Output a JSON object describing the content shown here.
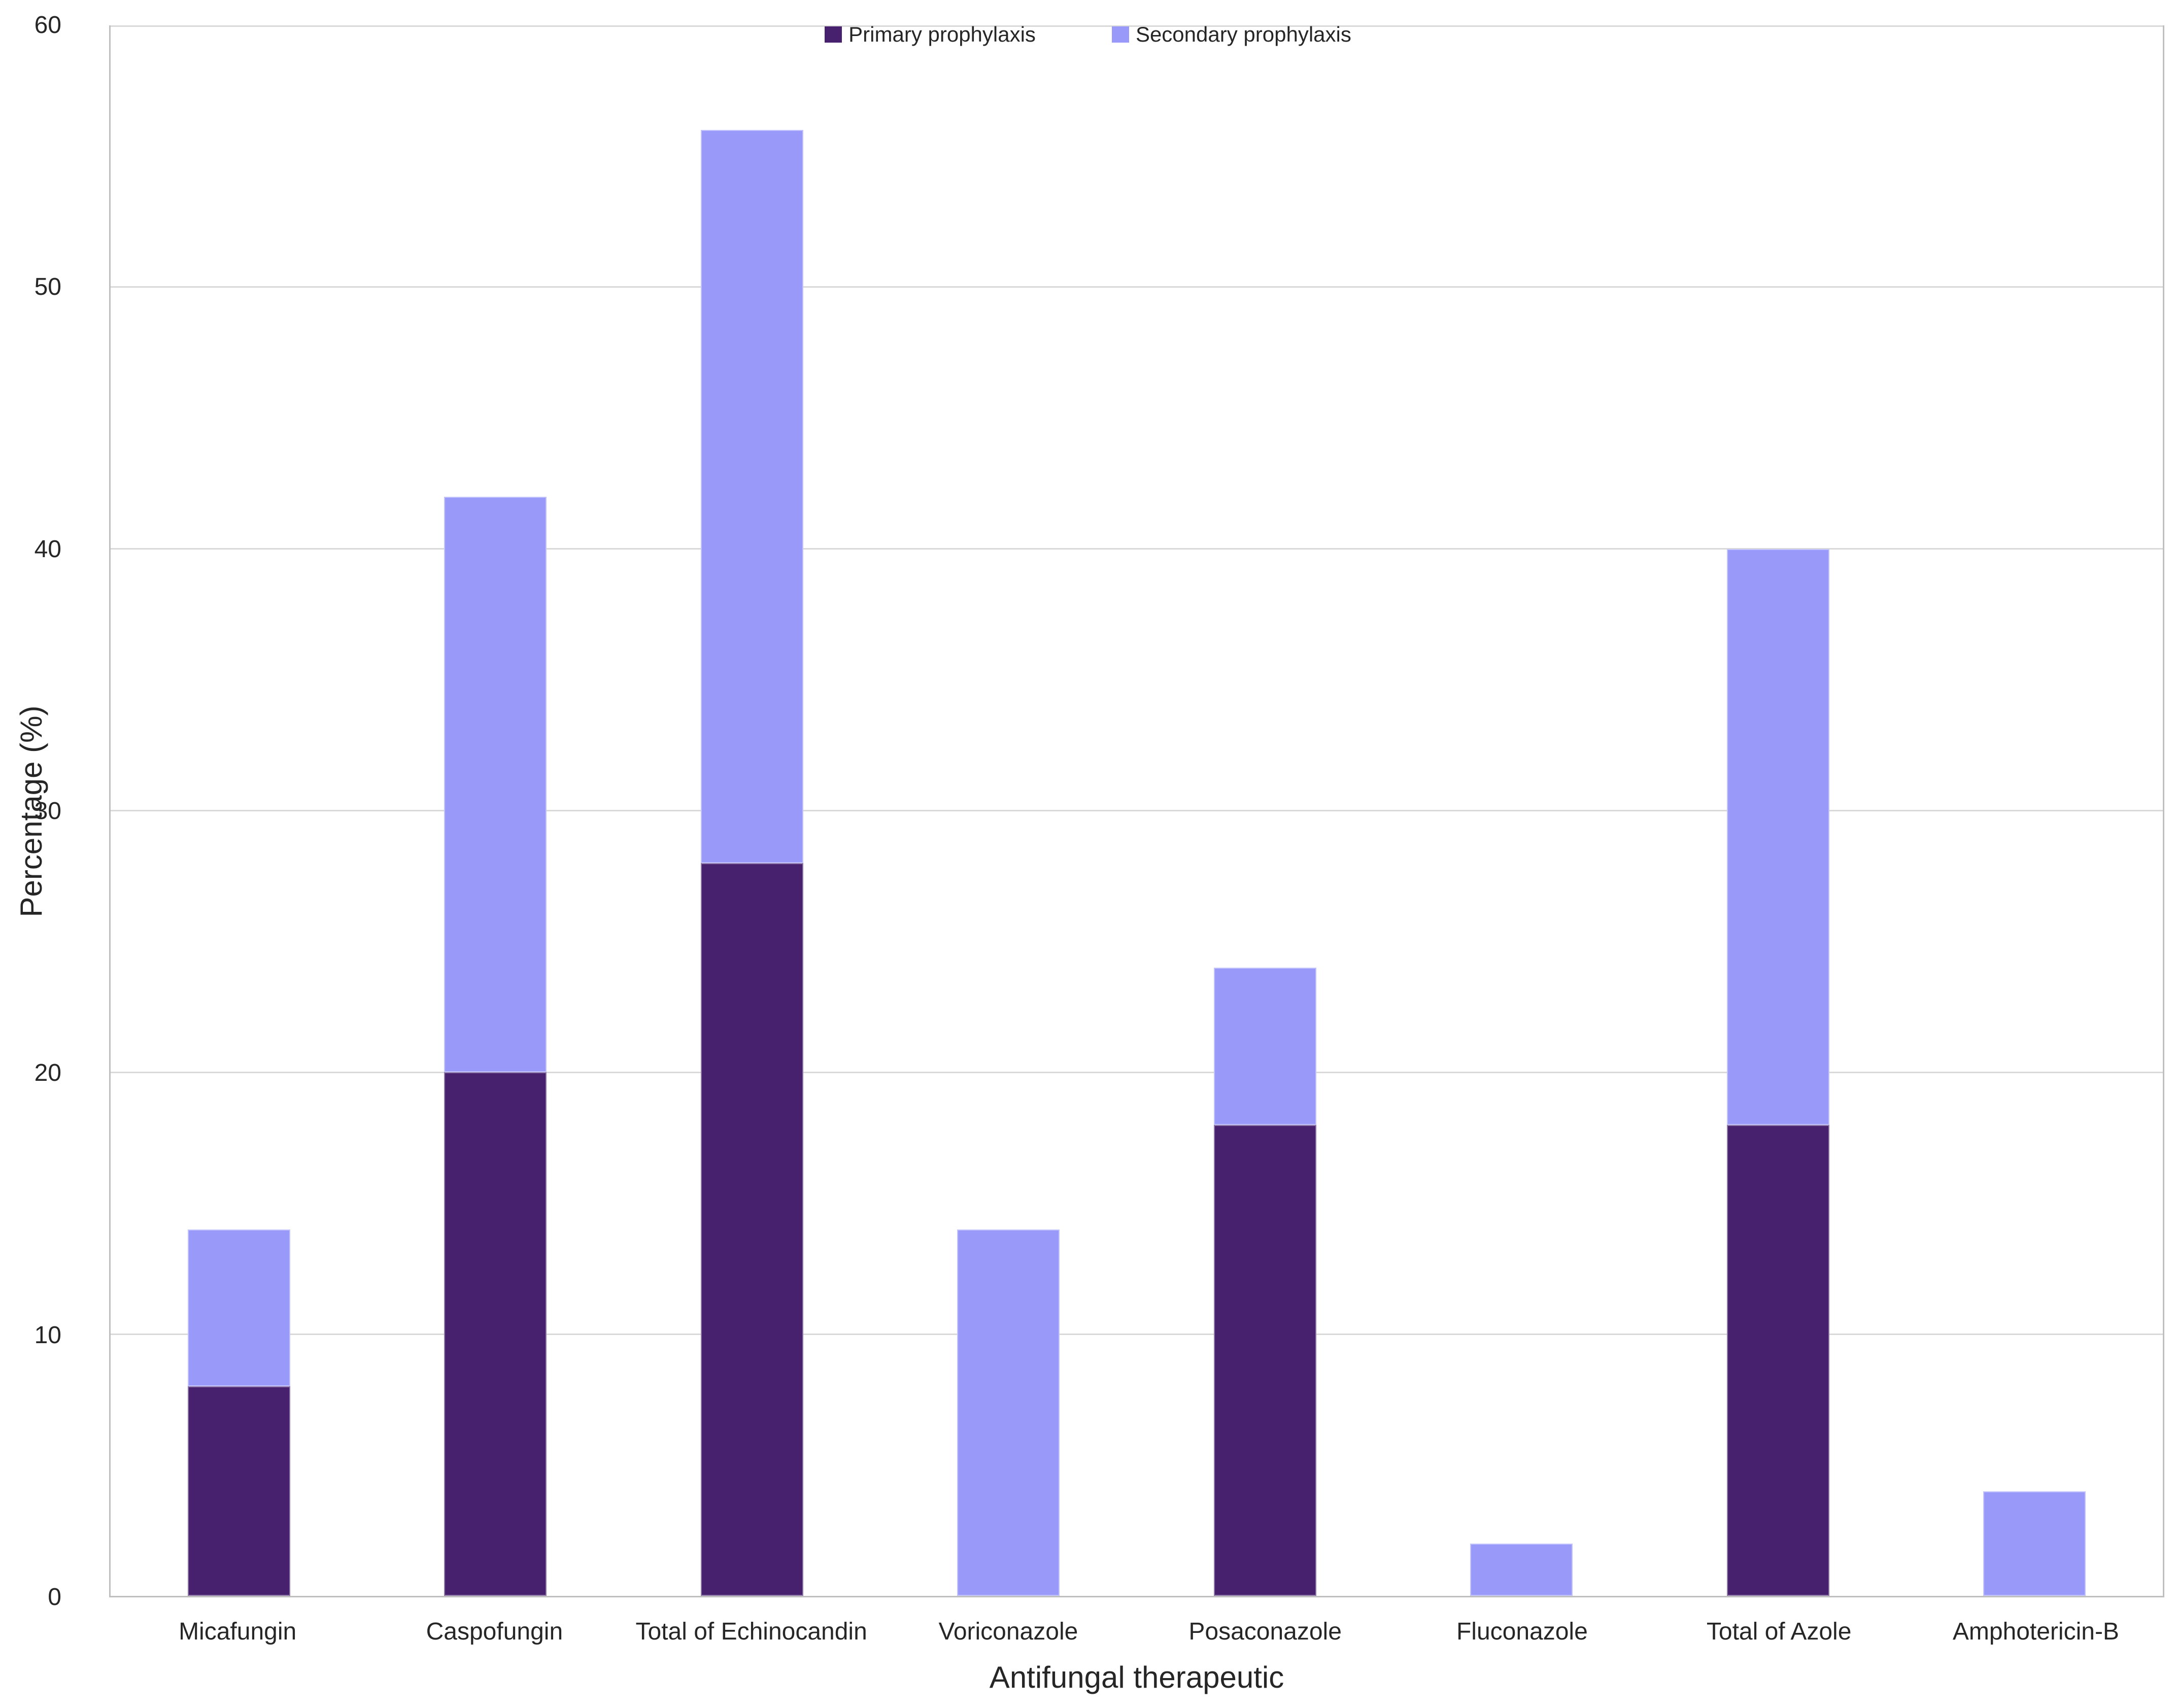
{
  "chart_data": {
    "type": "bar",
    "stacked": true,
    "title": "",
    "xlabel": "Antifungal therapeutic",
    "ylabel": "Percentage (%)",
    "ylim": [
      0,
      60
    ],
    "yticks": [
      0,
      10,
      20,
      30,
      40,
      50,
      60
    ],
    "grid": "horizontal",
    "legend_position": "top-center",
    "categories": [
      "Micafungin",
      "Caspofungin",
      "Total of Echinocandin",
      "Voriconazole",
      "Posaconazole",
      "Fluconazole",
      "Total of Azole",
      "Amphotericin-B"
    ],
    "series": [
      {
        "name": "Primary prophylaxis",
        "color": "#47216E",
        "values": [
          8,
          20,
          28,
          0,
          18,
          0,
          18,
          0
        ]
      },
      {
        "name": "Secondary prophylaxis",
        "color": "#9999FA",
        "values": [
          6,
          22,
          28,
          14,
          6,
          2,
          22,
          4
        ]
      }
    ],
    "stack_totals": [
      14,
      42,
      56,
      14,
      24,
      2,
      40,
      4
    ],
    "colors": {
      "gridline": "#D9D9D9",
      "axis_line": "#BFBFBF",
      "text": "#262626",
      "background": "#FFFFFF"
    }
  }
}
